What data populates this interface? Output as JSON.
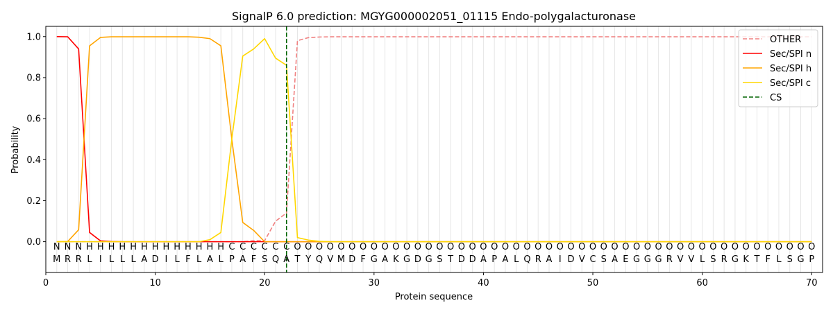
{
  "chart_data": {
    "type": "line",
    "title": "SignalP 6.0 prediction: MGYG000002051_01115 Endo-polygalacturonase",
    "xlabel": "Protein sequence",
    "ylabel": "Probability",
    "xlim": [
      0,
      71
    ],
    "ylim": [
      -0.15,
      1.05
    ],
    "xticks": [
      "0",
      "10",
      "20",
      "30",
      "40",
      "50",
      "60",
      "70"
    ],
    "yticks": [
      "0.0",
      "0.2",
      "0.4",
      "0.6",
      "0.8",
      "1.0"
    ],
    "grid": "vertical lines at every residue",
    "legend_position": "top-right",
    "x": [
      1,
      2,
      3,
      4,
      5,
      6,
      7,
      8,
      9,
      10,
      11,
      12,
      13,
      14,
      15,
      16,
      17,
      18,
      19,
      20,
      21,
      22,
      23,
      24,
      25,
      26,
      27,
      28,
      29,
      30,
      31,
      32,
      33,
      34,
      35,
      36,
      37,
      38,
      39,
      40,
      41,
      42,
      43,
      44,
      45,
      46,
      47,
      48,
      49,
      50,
      51,
      52,
      53,
      54,
      55,
      56,
      57,
      58,
      59,
      60,
      61,
      62,
      63,
      64,
      65,
      66,
      67,
      68,
      69,
      70
    ],
    "sequence": [
      "M",
      "R",
      "R",
      "L",
      "I",
      "L",
      "L",
      "L",
      "A",
      "D",
      "I",
      "L",
      "F",
      "L",
      "A",
      "L",
      "P",
      "A",
      "F",
      "S",
      "Q",
      "A",
      "T",
      "Y",
      "Q",
      "V",
      "M",
      "D",
      "F",
      "G",
      "A",
      "K",
      "G",
      "D",
      "G",
      "S",
      "T",
      "D",
      "D",
      "A",
      "P",
      "A",
      "L",
      "Q",
      "R",
      "A",
      "I",
      "D",
      "V",
      "C",
      "S",
      "A",
      "E",
      "G",
      "G",
      "G",
      "R",
      "V",
      "V",
      "L",
      "S",
      "R",
      "G",
      "K",
      "T",
      "F",
      "L",
      "S",
      "G",
      "P"
    ],
    "labels": [
      "N",
      "N",
      "N",
      "H",
      "H",
      "H",
      "H",
      "H",
      "H",
      "H",
      "H",
      "H",
      "H",
      "H",
      "H",
      "H",
      "C",
      "C",
      "C",
      "C",
      "C",
      "C",
      "O",
      "O",
      "O",
      "O",
      "O",
      "O",
      "O",
      "O",
      "O",
      "O",
      "O",
      "O",
      "O",
      "O",
      "O",
      "O",
      "O",
      "O",
      "O",
      "O",
      "O",
      "O",
      "O",
      "O",
      "O",
      "O",
      "O",
      "O",
      "O",
      "O",
      "O",
      "O",
      "O",
      "O",
      "O",
      "O",
      "O",
      "O",
      "O",
      "O",
      "O",
      "O",
      "O",
      "O",
      "O",
      "O",
      "O",
      "O"
    ],
    "label_colors": {
      "N": "#ff0000",
      "H": "#ffa500",
      "C": "#ffd700",
      "O": "#808080"
    },
    "series": [
      {
        "name": "OTHER",
        "color": "#f08080",
        "dash": "dashed",
        "values": [
          0.0,
          0.0,
          0.0,
          0.0,
          0.0,
          0.0,
          0.0,
          0.0,
          0.0,
          0.0,
          0.0,
          0.0,
          0.0,
          0.0,
          0.0,
          0.0,
          0.0,
          0.0,
          0.005,
          0.005,
          0.1,
          0.14,
          0.98,
          0.995,
          0.998,
          0.999,
          0.999,
          0.999,
          0.999,
          0.999,
          0.999,
          0.999,
          0.999,
          0.999,
          0.999,
          0.999,
          0.999,
          0.999,
          0.999,
          0.999,
          0.999,
          0.999,
          0.999,
          0.999,
          0.999,
          0.999,
          0.999,
          0.999,
          0.999,
          0.999,
          0.999,
          0.999,
          0.999,
          0.999,
          0.999,
          0.999,
          0.999,
          0.999,
          0.999,
          0.999,
          0.999,
          0.999,
          0.999,
          0.999,
          0.999,
          0.999,
          0.999,
          0.999,
          0.999,
          0.999
        ]
      },
      {
        "name": "Sec/SPI n",
        "color": "#ff0000",
        "dash": "solid",
        "values": [
          1.0,
          0.999,
          0.94,
          0.045,
          0.004,
          0.001,
          0.0,
          0.0,
          0.0,
          0.0,
          0.0,
          0.0,
          0.0,
          0.0,
          0.0,
          0.0,
          0.0,
          0.0,
          0.0,
          0.0,
          0.0,
          0.0,
          0.0,
          0.0,
          0.0,
          0.0,
          0.0,
          0.0,
          0.0,
          0.0,
          0.0,
          0.0,
          0.0,
          0.0,
          0.0,
          0.0,
          0.0,
          0.0,
          0.0,
          0.0,
          0.0,
          0.0,
          0.0,
          0.0,
          0.0,
          0.0,
          0.0,
          0.0,
          0.0,
          0.0,
          0.0,
          0.0,
          0.0,
          0.0,
          0.0,
          0.0,
          0.0,
          0.0,
          0.0,
          0.0,
          0.0,
          0.0,
          0.0,
          0.0,
          0.0,
          0.0,
          0.0,
          0.0,
          0.0,
          0.0
        ]
      },
      {
        "name": "Sec/SPI h",
        "color": "#ffa500",
        "dash": "solid",
        "values": [
          0.0,
          0.001,
          0.058,
          0.955,
          0.996,
          0.999,
          0.999,
          0.999,
          0.999,
          0.999,
          0.999,
          0.999,
          0.999,
          0.997,
          0.99,
          0.955,
          0.5,
          0.094,
          0.055,
          0.0,
          0.0,
          0.0,
          0.0,
          0.0,
          0.0,
          0.0,
          0.0,
          0.0,
          0.0,
          0.0,
          0.0,
          0.0,
          0.0,
          0.0,
          0.0,
          0.0,
          0.0,
          0.0,
          0.0,
          0.0,
          0.0,
          0.0,
          0.0,
          0.0,
          0.0,
          0.0,
          0.0,
          0.0,
          0.0,
          0.0,
          0.0,
          0.0,
          0.0,
          0.0,
          0.0,
          0.0,
          0.0,
          0.0,
          0.0,
          0.0,
          0.0,
          0.0,
          0.0,
          0.0,
          0.0,
          0.0,
          0.0,
          0.0,
          0.0,
          0.0
        ]
      },
      {
        "name": "Sec/SPI c",
        "color": "#ffd700",
        "dash": "solid",
        "values": [
          0.0,
          0.0,
          0.0,
          0.0,
          0.0,
          0.0,
          0.0,
          0.0,
          0.0,
          0.0,
          0.0,
          0.0,
          0.0,
          0.0,
          0.01,
          0.045,
          0.5,
          0.905,
          0.94,
          0.99,
          0.895,
          0.86,
          0.02,
          0.008,
          0.002,
          0.0,
          0.0,
          0.0,
          0.0,
          0.0,
          0.0,
          0.0,
          0.0,
          0.0,
          0.0,
          0.0,
          0.0,
          0.0,
          0.0,
          0.0,
          0.0,
          0.0,
          0.0,
          0.0,
          0.0,
          0.0,
          0.0,
          0.0,
          0.0,
          0.0,
          0.0,
          0.0,
          0.0,
          0.0,
          0.0,
          0.0,
          0.0,
          0.0,
          0.0,
          0.0,
          0.0,
          0.0,
          0.0,
          0.0,
          0.0,
          0.0,
          0.0,
          0.0,
          0.0,
          0.0
        ]
      }
    ],
    "cleavage_site": {
      "name": "CS",
      "x": 22,
      "color": "#006400",
      "dash": "dashed"
    }
  }
}
